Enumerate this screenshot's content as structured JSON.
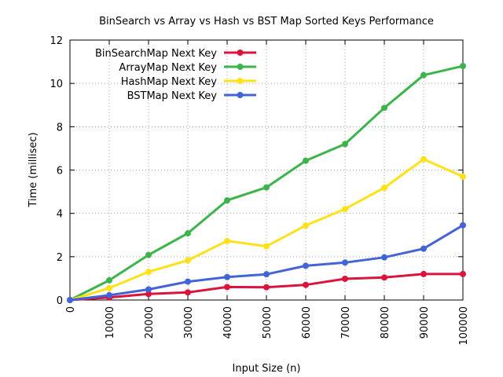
{
  "chart_data": {
    "type": "line",
    "title": "BinSearch vs Array vs Hash vs BST Map Sorted Keys Performance",
    "xlabel": "Input Size (n)",
    "ylabel": "Time (millisec)",
    "x": [
      0,
      10000,
      20000,
      30000,
      40000,
      50000,
      60000,
      70000,
      80000,
      90000,
      100000
    ],
    "xticks": [
      "0",
      "10000",
      "20000",
      "30000",
      "40000",
      "50000",
      "60000",
      "70000",
      "80000",
      "90000",
      "100000"
    ],
    "yticks": [
      "0",
      "2",
      "4",
      "6",
      "8",
      "10",
      "12"
    ],
    "xlim": [
      0,
      100000
    ],
    "ylim": [
      0,
      12
    ],
    "grid": true,
    "legend_position": "top-left",
    "series": [
      {
        "name": "BinSearchMap Next Key",
        "color": "#dc143c",
        "values": [
          0,
          0.12,
          0.28,
          0.35,
          0.6,
          0.59,
          0.7,
          0.98,
          1.04,
          1.2,
          1.2
        ]
      },
      {
        "name": "ArrayMap Next Key",
        "color": "#3cb44b",
        "values": [
          0,
          0.91,
          2.08,
          3.08,
          4.6,
          5.2,
          6.43,
          7.2,
          8.87,
          10.38,
          10.8
        ]
      },
      {
        "name": "HashMap Next Key",
        "color": "#ffe119",
        "values": [
          0,
          0.55,
          1.3,
          1.83,
          2.73,
          2.48,
          3.44,
          4.2,
          5.18,
          6.5,
          5.7
        ]
      },
      {
        "name": "BSTMap Next Key",
        "color": "#4363d8",
        "values": [
          0,
          0.22,
          0.49,
          0.85,
          1.06,
          1.19,
          1.58,
          1.73,
          1.97,
          2.37,
          3.45
        ]
      }
    ]
  }
}
